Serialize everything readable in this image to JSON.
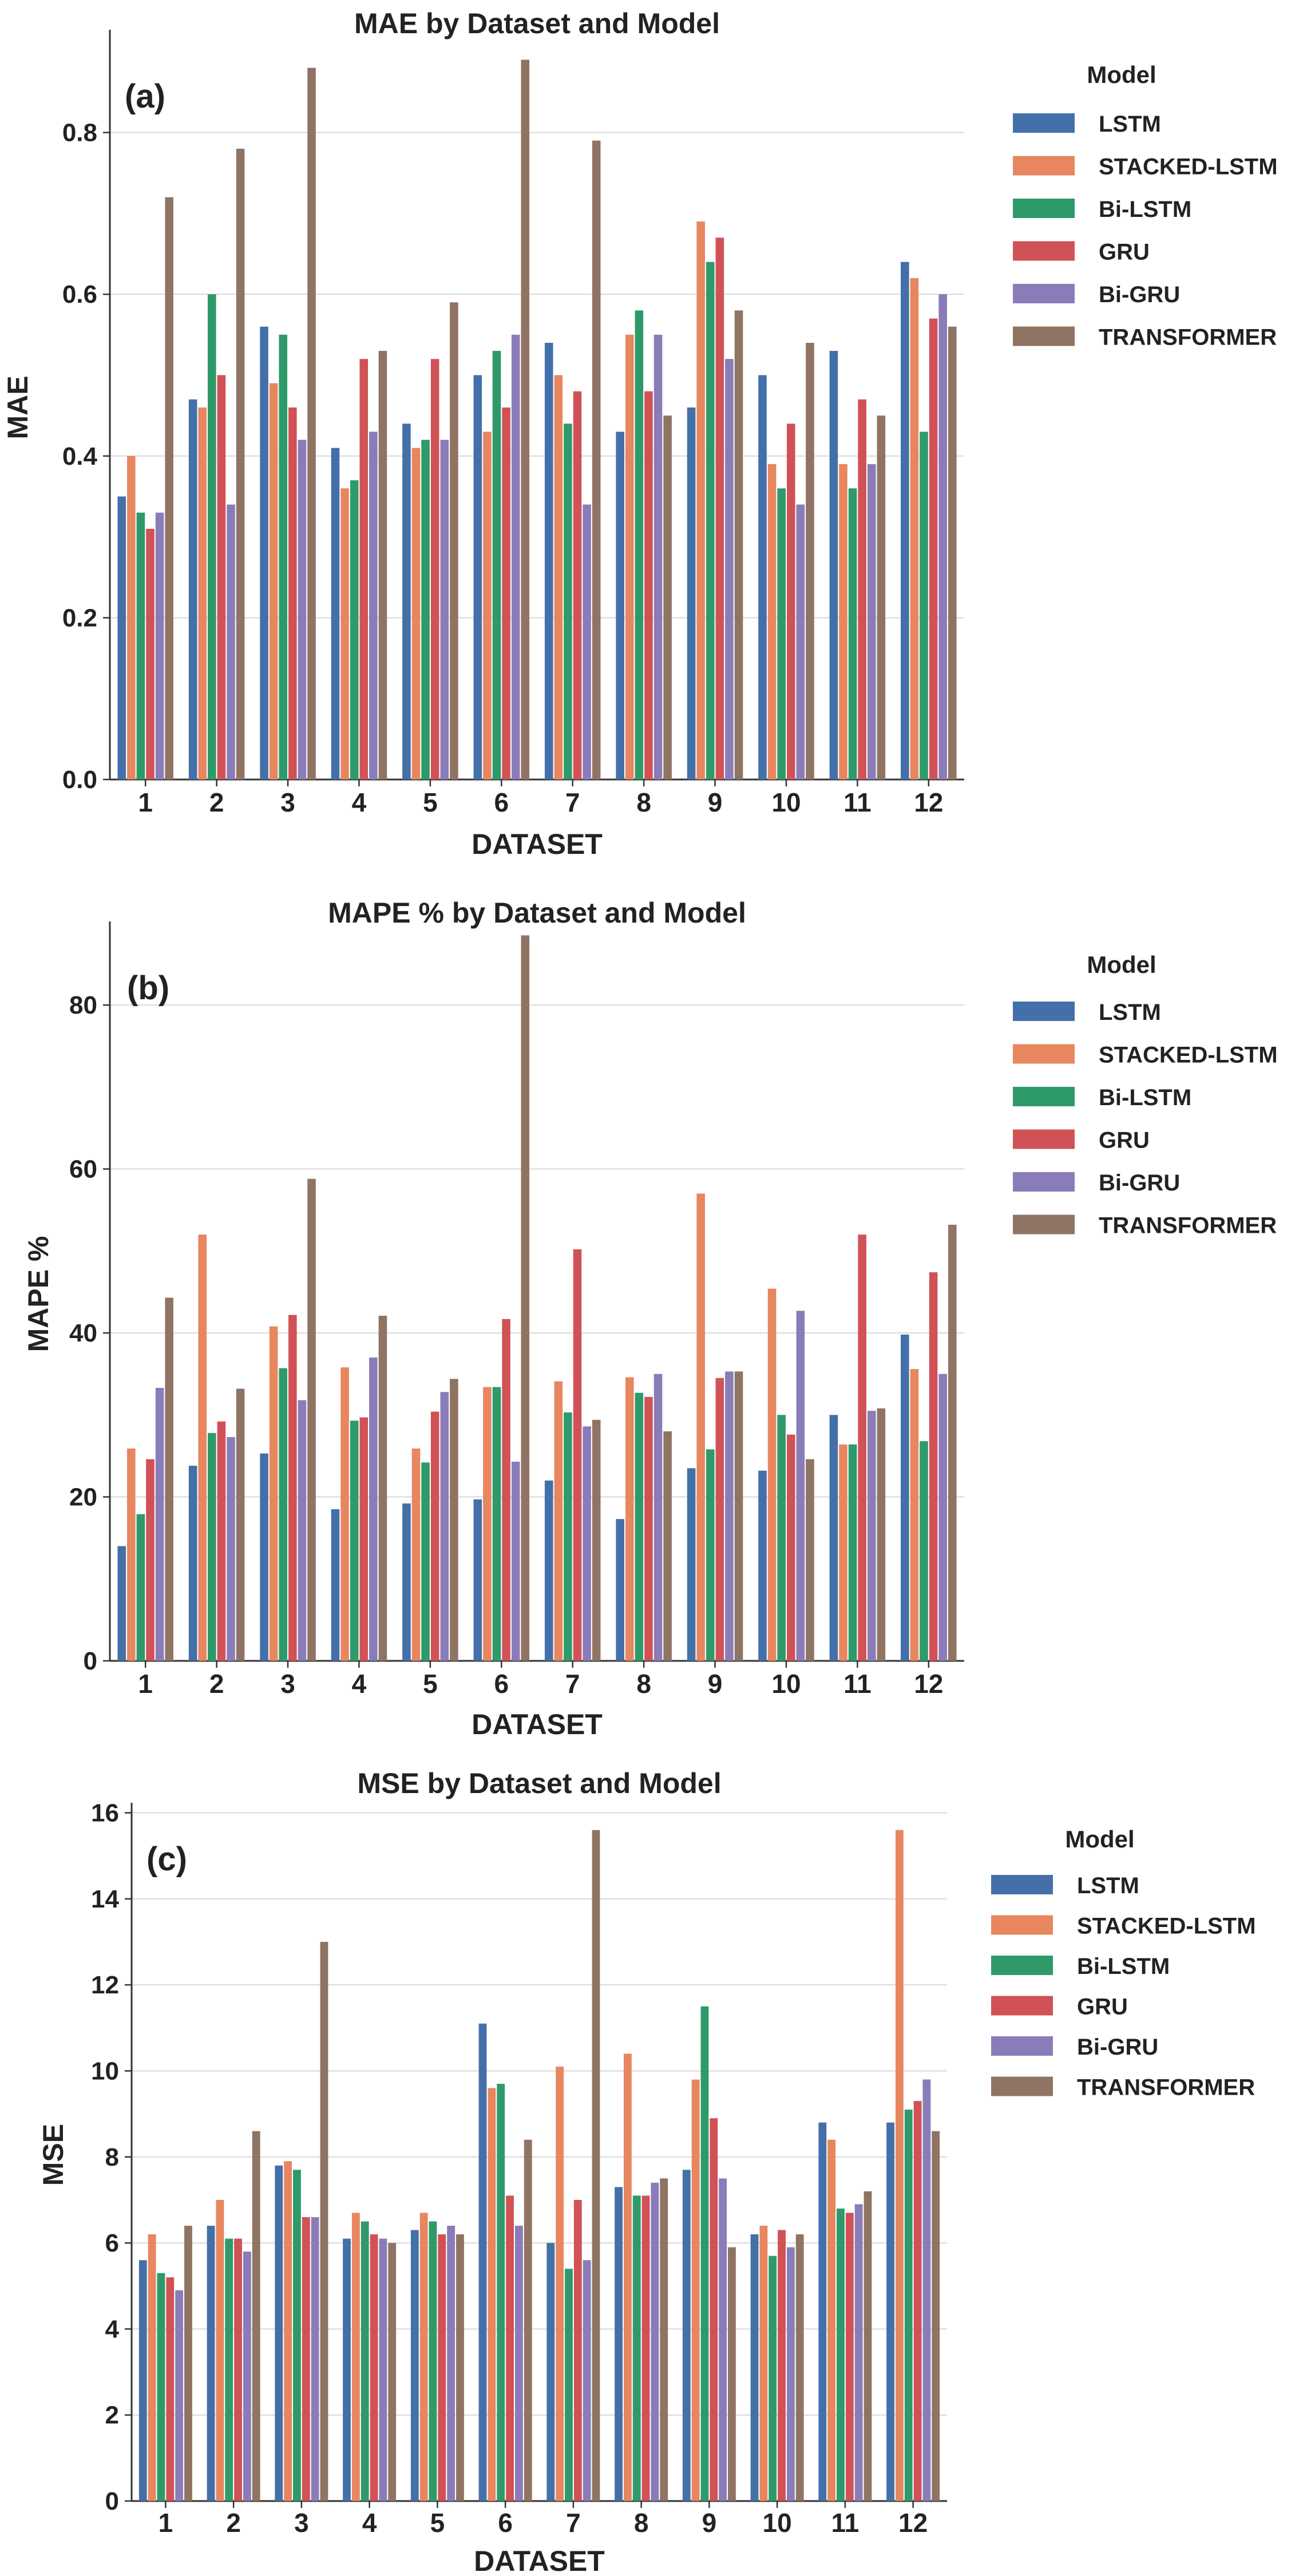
{
  "colors": {
    "LSTM": "#4470a9",
    "STACKED-LSTM": "#e7865f",
    "Bi-LSTM": "#2e9a6a",
    "GRU": "#d05256",
    "Bi-GRU": "#8a7cb8",
    "TRANSFORMER": "#8f7464"
  },
  "chart_data": [
    {
      "type": "bar",
      "panel_label": "(a)",
      "title": "MAE by Dataset and Model",
      "xlabel": "DATASET",
      "ylabel": "MAE",
      "ylim": [
        0,
        0.92
      ],
      "yticks": [
        "0.0",
        "0.2",
        "0.4",
        "0.6",
        "0.8"
      ],
      "grid": true,
      "legend_title": "Model",
      "legend_placement": "right-top",
      "categories": [
        "1",
        "2",
        "3",
        "4",
        "5",
        "6",
        "7",
        "8",
        "9",
        "10",
        "11",
        "12"
      ],
      "series": [
        {
          "name": "LSTM",
          "values": [
            0.35,
            0.47,
            0.56,
            0.41,
            0.44,
            0.5,
            0.54,
            0.43,
            0.46,
            0.5,
            0.53,
            0.64
          ]
        },
        {
          "name": "STACKED-LSTM",
          "values": [
            0.4,
            0.46,
            0.49,
            0.36,
            0.41,
            0.43,
            0.5,
            0.55,
            0.69,
            0.39,
            0.39,
            0.62
          ]
        },
        {
          "name": "Bi-LSTM",
          "values": [
            0.33,
            0.6,
            0.55,
            0.37,
            0.42,
            0.53,
            0.44,
            0.58,
            0.64,
            0.36,
            0.36,
            0.43
          ]
        },
        {
          "name": "GRU",
          "values": [
            0.31,
            0.5,
            0.46,
            0.52,
            0.52,
            0.46,
            0.48,
            0.48,
            0.67,
            0.44,
            0.47,
            0.57
          ]
        },
        {
          "name": "Bi-GRU",
          "values": [
            0.33,
            0.34,
            0.42,
            0.43,
            0.42,
            0.55,
            0.34,
            0.55,
            0.52,
            0.34,
            0.39,
            0.6
          ]
        },
        {
          "name": "TRANSFORMER",
          "values": [
            0.72,
            0.78,
            0.88,
            0.53,
            0.59,
            0.89,
            0.79,
            0.45,
            0.58,
            0.54,
            0.45,
            0.56
          ]
        }
      ]
    },
    {
      "type": "bar",
      "panel_label": "(b)",
      "title": "MAPE % by Dataset and Model",
      "xlabel": "DATASET",
      "ylabel": "MAPE %",
      "ylim": [
        0,
        89.5
      ],
      "yticks": [
        "0",
        "20",
        "40",
        "60",
        "80"
      ],
      "grid": true,
      "legend_title": "Model",
      "legend_placement": "right-top",
      "categories": [
        "1",
        "2",
        "3",
        "4",
        "5",
        "6",
        "7",
        "8",
        "9",
        "10",
        "11",
        "12"
      ],
      "series": [
        {
          "name": "LSTM",
          "values": [
            14.0,
            23.8,
            25.3,
            18.5,
            19.2,
            19.7,
            22.0,
            17.3,
            23.5,
            23.2,
            30.0,
            39.8
          ]
        },
        {
          "name": "STACKED-LSTM",
          "values": [
            25.9,
            52.0,
            40.8,
            35.8,
            25.9,
            33.4,
            34.1,
            34.6,
            57.0,
            45.4,
            26.4,
            35.6
          ]
        },
        {
          "name": "Bi-LSTM",
          "values": [
            17.9,
            27.8,
            35.7,
            29.3,
            24.2,
            33.4,
            30.3,
            32.7,
            25.8,
            30.0,
            26.4,
            26.8
          ]
        },
        {
          "name": "GRU",
          "values": [
            24.6,
            29.2,
            42.2,
            29.7,
            30.4,
            41.7,
            50.2,
            32.2,
            34.5,
            27.6,
            52.0,
            47.4
          ]
        },
        {
          "name": "Bi-GRU",
          "values": [
            33.3,
            27.3,
            31.8,
            37.0,
            32.8,
            24.3,
            28.6,
            35.0,
            35.3,
            42.7,
            30.5,
            35.0
          ]
        },
        {
          "name": "TRANSFORMER",
          "values": [
            44.3,
            33.2,
            58.8,
            42.1,
            34.4,
            88.5,
            29.4,
            28.0,
            35.3,
            24.6,
            30.8,
            53.2
          ]
        }
      ]
    },
    {
      "type": "bar",
      "panel_label": "(c)",
      "title": "MSE by Dataset and Model",
      "xlabel": "DATASET",
      "ylabel": "MSE",
      "ylim": [
        0,
        16.1
      ],
      "yticks": [
        "0",
        "2",
        "4",
        "6",
        "8",
        "10",
        "12",
        "14",
        "16"
      ],
      "grid": true,
      "legend_title": "Model",
      "legend_placement": "right-top",
      "categories": [
        "1",
        "2",
        "3",
        "4",
        "5",
        "6",
        "7",
        "8",
        "9",
        "10",
        "11",
        "12"
      ],
      "series": [
        {
          "name": "LSTM",
          "values": [
            5.6,
            6.4,
            7.8,
            6.1,
            6.3,
            11.1,
            6.0,
            7.3,
            7.7,
            6.2,
            8.8,
            8.8
          ]
        },
        {
          "name": "STACKED-LSTM",
          "values": [
            6.2,
            7.0,
            7.9,
            6.7,
            6.7,
            9.6,
            10.1,
            10.4,
            9.8,
            6.4,
            8.4,
            15.6
          ]
        },
        {
          "name": "Bi-LSTM",
          "values": [
            5.3,
            6.1,
            7.7,
            6.5,
            6.5,
            9.7,
            5.4,
            7.1,
            11.5,
            5.7,
            6.8,
            9.1
          ]
        },
        {
          "name": "GRU",
          "values": [
            5.2,
            6.1,
            6.6,
            6.2,
            6.2,
            7.1,
            7.0,
            7.1,
            8.9,
            6.3,
            6.7,
            9.3
          ]
        },
        {
          "name": "Bi-GRU",
          "values": [
            4.9,
            5.8,
            6.6,
            6.1,
            6.4,
            6.4,
            5.6,
            7.4,
            7.5,
            5.9,
            6.9,
            9.8
          ]
        },
        {
          "name": "TRANSFORMER",
          "values": [
            6.4,
            8.6,
            13.0,
            6.0,
            6.2,
            8.4,
            15.6,
            7.5,
            5.9,
            6.2,
            7.2,
            8.6
          ]
        }
      ]
    }
  ]
}
